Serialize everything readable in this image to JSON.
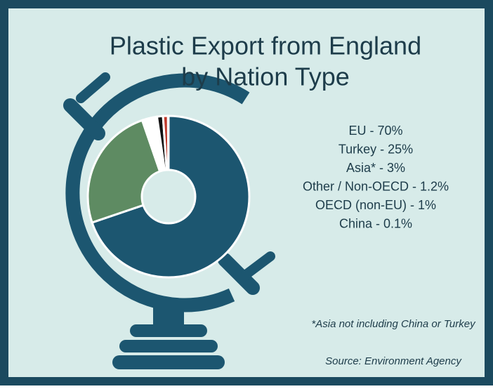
{
  "chart_data": {
    "type": "donut",
    "title_lines": [
      "Plastic Export from England",
      "by Nation Type"
    ],
    "values": [
      70,
      25,
      3,
      1.2,
      1,
      0.1
    ],
    "value_labels": [
      "EU - 70%",
      "Turkey - 25%",
      "Asia* - 3%",
      "Other / Non-OECD - 1.2%",
      "OECD (non-EU) - 1%",
      "China - 0.1%"
    ],
    "colors": [
      "#1c5670",
      "#5e8b62",
      "#ffffff",
      "#111111",
      "#c0392b",
      "#e8e8e8"
    ],
    "note": "*Asia not including China or Turkey",
    "source": "Source: Environment Agency"
  }
}
